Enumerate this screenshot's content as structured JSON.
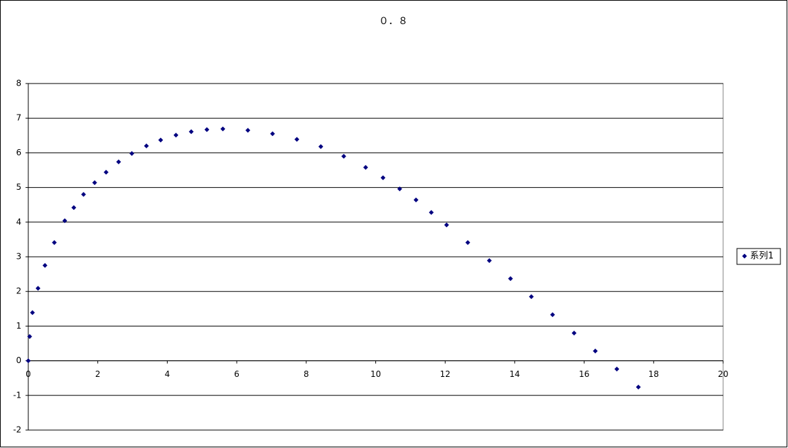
{
  "chart_data": {
    "type": "scatter",
    "title": "０．８",
    "series": [
      {
        "name": "系列1",
        "color": "#000080",
        "x": [
          0,
          0.04,
          0.12,
          0.28,
          0.48,
          0.75,
          1.05,
          1.31,
          1.59,
          1.91,
          2.24,
          2.6,
          2.98,
          3.4,
          3.81,
          4.25,
          4.69,
          5.14,
          5.6,
          6.32,
          7.03,
          7.73,
          8.42,
          9.08,
          9.71,
          10.21,
          10.69,
          11.16,
          11.6,
          12.04,
          12.65,
          13.27,
          13.88,
          14.48,
          15.09,
          15.71,
          16.32,
          16.94,
          17.56
        ],
        "values": [
          0,
          0.7,
          1.39,
          2.09,
          2.75,
          3.41,
          4.04,
          4.42,
          4.8,
          5.14,
          5.44,
          5.74,
          5.98,
          6.2,
          6.37,
          6.51,
          6.61,
          6.67,
          6.69,
          6.65,
          6.55,
          6.39,
          6.18,
          5.9,
          5.58,
          5.28,
          4.96,
          4.64,
          4.28,
          3.92,
          3.41,
          2.89,
          2.37,
          1.85,
          1.33,
          0.8,
          0.28,
          -0.24,
          -0.76
        ]
      }
    ],
    "xlim": [
      0,
      20
    ],
    "xticks": [
      0,
      2,
      4,
      6,
      8,
      10,
      12,
      14,
      16,
      18,
      20
    ],
    "ylim": [
      -2,
      8
    ],
    "yticks": [
      -2,
      -1,
      0,
      1,
      2,
      3,
      4,
      5,
      6,
      7,
      8
    ],
    "grid": true,
    "legend": "right"
  }
}
